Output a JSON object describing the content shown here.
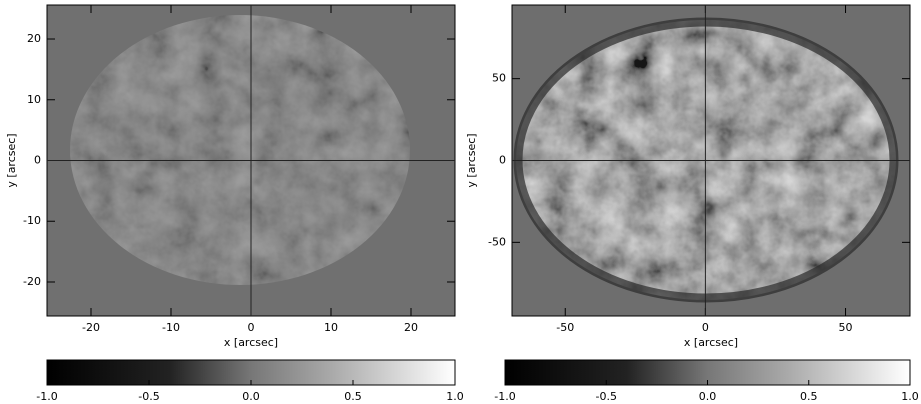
{
  "chart_data": [
    {
      "type": "image",
      "xlabel": "x [arcsec]",
      "ylabel": "y [arcsec]",
      "xlim": [
        -25.5,
        25.5
      ],
      "ylim": [
        -25.6,
        25.6
      ],
      "xticks": [
        -20,
        -10,
        0,
        10,
        20
      ],
      "yticks": [
        -20,
        -10,
        0,
        10,
        20
      ],
      "colorbar": {
        "lim": [
          -1,
          1
        ],
        "ticks": [
          {
            "value": -1,
            "label": "-1.0"
          },
          {
            "value": -0.5,
            "label": "-0.5"
          },
          {
            "value": 0,
            "label": "0.0"
          },
          {
            "value": 0.5,
            "label": "0.5"
          },
          {
            "value": 1,
            "label": "1.0"
          }
        ]
      }
    },
    {
      "type": "image",
      "xlabel": "x [arcsec]",
      "ylabel": "y [arcsec]",
      "xlim": [
        -69,
        73
      ],
      "ylim": [
        -95,
        95
      ],
      "xticks": [
        -50,
        0,
        50
      ],
      "yticks": [
        -50,
        0,
        50
      ],
      "colorbar": {
        "lim": [
          -1,
          1
        ],
        "ticks": [
          {
            "value": -1,
            "label": "-1.0"
          },
          {
            "value": -0.5,
            "label": "-0.5"
          },
          {
            "value": 0,
            "label": "0.0"
          },
          {
            "value": 0.5,
            "label": "0.5"
          },
          {
            "value": 1,
            "label": "1.0"
          }
        ]
      }
    }
  ]
}
